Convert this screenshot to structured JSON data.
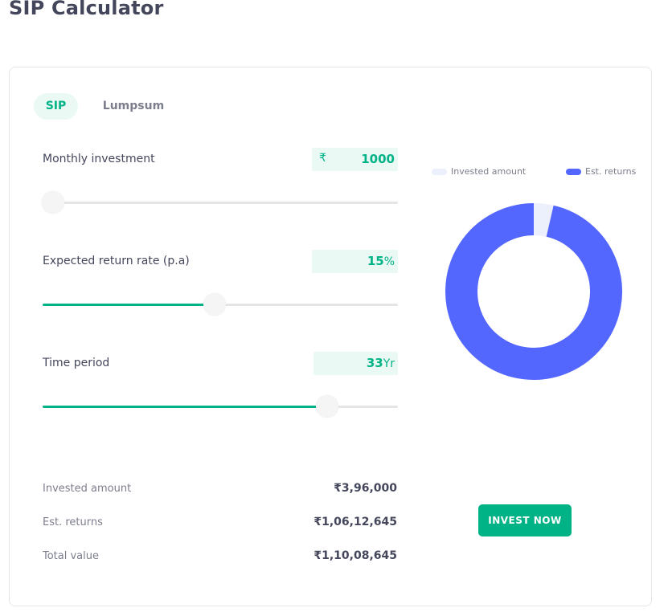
{
  "page": {
    "title": "SIP Calculator"
  },
  "tabs": [
    {
      "label": "SIP",
      "active": true
    },
    {
      "label": "Lumpsum",
      "active": false
    }
  ],
  "inputs": {
    "monthly": {
      "label": "Monthly investment",
      "prefix": "₹",
      "value": "1000",
      "suffix": "",
      "slider_fraction": 0.03
    },
    "rate": {
      "label": "Expected return rate (p.a)",
      "prefix": "",
      "value": "15",
      "suffix": "%",
      "slider_fraction": 0.485
    },
    "period": {
      "label": "Time period",
      "prefix": "",
      "value": "33",
      "suffix": "Yr",
      "slider_fraction": 0.8
    }
  },
  "summary": [
    {
      "label": "Invested amount",
      "value": "₹3,96,000"
    },
    {
      "label": "Est. returns",
      "value": "₹1,06,12,645"
    },
    {
      "label": "Total value",
      "value": "₹1,10,08,645"
    }
  ],
  "legend": [
    {
      "label": "Invested amount",
      "color": "#eceffc"
    },
    {
      "label": "Est. returns",
      "color": "#5367ff"
    }
  ],
  "chart_data": {
    "type": "pie",
    "categories": [
      "Invested amount",
      "Est. returns"
    ],
    "values": [
      396000,
      10612645
    ],
    "colors": [
      "#eceffc",
      "#5367ff"
    ]
  },
  "cta": {
    "label": "INVEST NOW",
    "color": "#00b386"
  },
  "colors": {
    "accent": "#00b386",
    "text": "#44475b",
    "muted": "#7c7e8c"
  }
}
